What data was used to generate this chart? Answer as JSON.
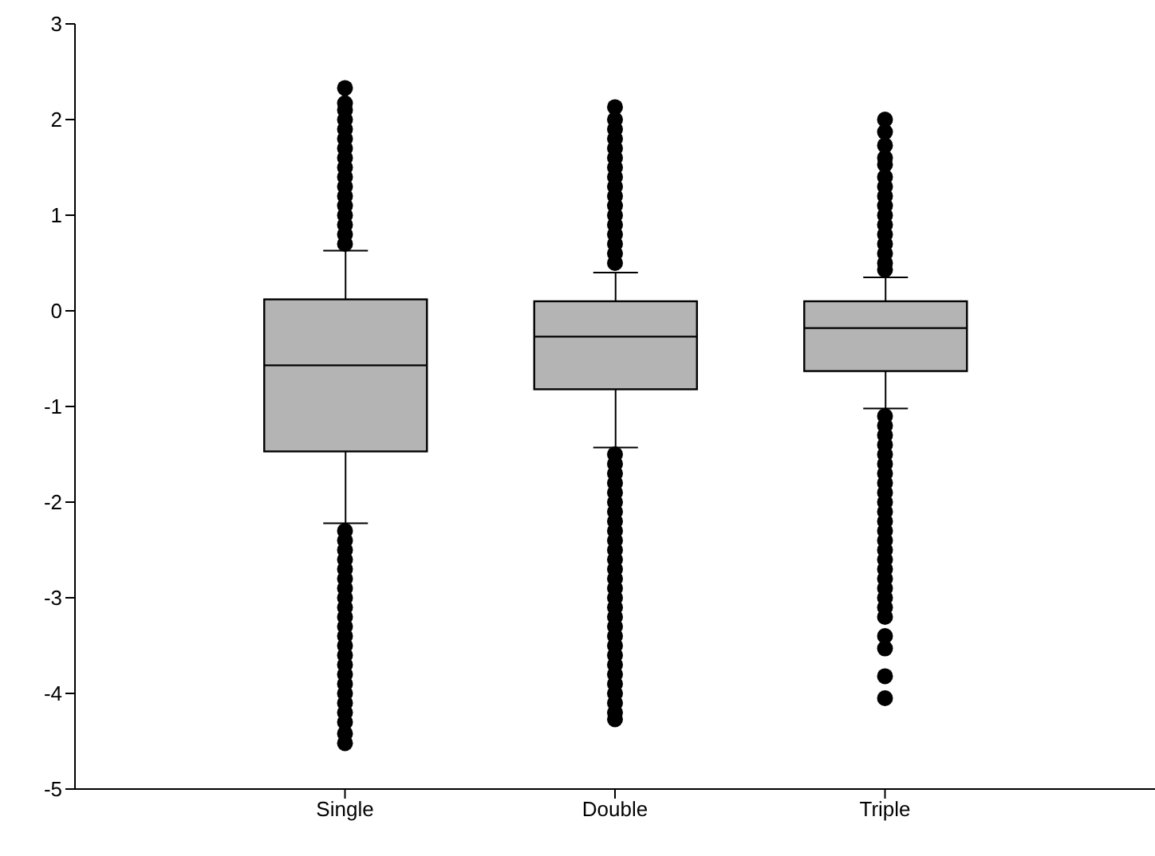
{
  "chart_data": {
    "type": "box",
    "categories": [
      "Single",
      "Double",
      "Triple"
    ],
    "color": "#b4b4b4",
    "boxes": [
      {
        "low": -2.22,
        "q1": -1.47,
        "median": -0.57,
        "q3": 0.12,
        "high": 0.63,
        "outliers": [
          0.7,
          0.8,
          0.9,
          1.0,
          1.1,
          1.2,
          1.3,
          1.4,
          1.5,
          1.6,
          1.7,
          1.8,
          1.9,
          2.0,
          2.1,
          2.17,
          2.33,
          -2.3,
          -2.4,
          -2.5,
          -2.6,
          -2.7,
          -2.8,
          -2.9,
          -3.0,
          -3.1,
          -3.2,
          -3.3,
          -3.4,
          -3.5,
          -3.6,
          -3.7,
          -3.8,
          -3.9,
          -4.0,
          -4.1,
          -4.2,
          -4.3,
          -4.42,
          -4.52
        ]
      },
      {
        "low": -1.43,
        "q1": -0.82,
        "median": -0.27,
        "q3": 0.1,
        "high": 0.4,
        "outliers": [
          0.5,
          0.6,
          0.7,
          0.8,
          0.9,
          1.0,
          1.1,
          1.2,
          1.3,
          1.4,
          1.5,
          1.6,
          1.7,
          1.8,
          1.9,
          2.0,
          2.13,
          -1.5,
          -1.6,
          -1.7,
          -1.8,
          -1.9,
          -2.0,
          -2.1,
          -2.2,
          -2.3,
          -2.4,
          -2.5,
          -2.6,
          -2.7,
          -2.8,
          -2.9,
          -3.0,
          -3.1,
          -3.2,
          -3.3,
          -3.4,
          -3.5,
          -3.6,
          -3.7,
          -3.8,
          -3.9,
          -4.0,
          -4.1,
          -4.2,
          -4.27
        ]
      },
      {
        "low": -1.02,
        "q1": -0.63,
        "median": -0.18,
        "q3": 0.1,
        "high": 0.35,
        "outliers": [
          0.43,
          0.5,
          0.6,
          0.7,
          0.8,
          0.9,
          1.0,
          1.1,
          1.2,
          1.3,
          1.4,
          1.53,
          1.6,
          1.73,
          1.87,
          2.0,
          -1.1,
          -1.2,
          -1.3,
          -1.4,
          -1.5,
          -1.6,
          -1.7,
          -1.8,
          -1.9,
          -2.0,
          -2.1,
          -2.2,
          -2.3,
          -2.4,
          -2.5,
          -2.6,
          -2.7,
          -2.8,
          -2.9,
          -3.0,
          -3.1,
          -3.2,
          -3.4,
          -3.53,
          -3.82,
          -4.05
        ]
      }
    ],
    "ylim": [
      -5,
      3
    ],
    "yticks": [
      -5,
      -4,
      -3,
      -2,
      -1,
      0,
      1,
      2,
      3
    ]
  }
}
